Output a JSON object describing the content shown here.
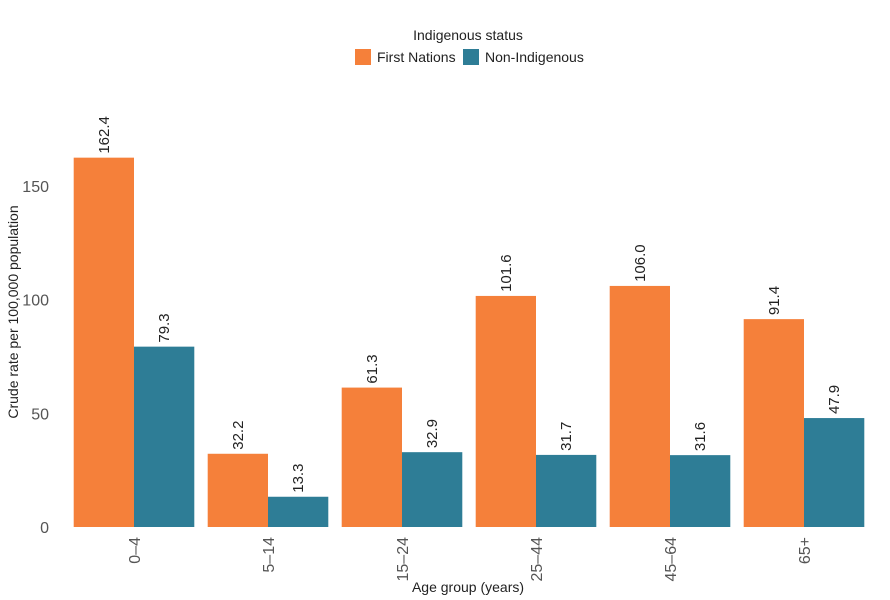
{
  "chart_data": {
    "type": "bar",
    "legend_title": "Indigenous status",
    "xlabel": "Age group (years)",
    "ylabel": "Crude rate per 100,000 population",
    "categories": [
      "0–4",
      "5–14",
      "15–24",
      "25–44",
      "45–64",
      "65+"
    ],
    "series": [
      {
        "name": "First Nations",
        "color": "#f5803a",
        "values": [
          162.4,
          32.2,
          61.3,
          101.6,
          106.0,
          91.4
        ],
        "value_labels": [
          "162.4",
          "32.2",
          "61.3",
          "101.6",
          "106.0",
          "91.4"
        ]
      },
      {
        "name": "Non-Indigenous",
        "color": "#2e7d96",
        "values": [
          79.3,
          13.3,
          32.9,
          31.7,
          31.6,
          47.9
        ],
        "value_labels": [
          "79.3",
          "13.3",
          "32.9",
          "31.7",
          "31.6",
          "47.9"
        ]
      }
    ],
    "ylim": [
      0,
      175
    ],
    "yticks": [
      0,
      50,
      100,
      150
    ],
    "grid": false,
    "legend_position": "top"
  }
}
